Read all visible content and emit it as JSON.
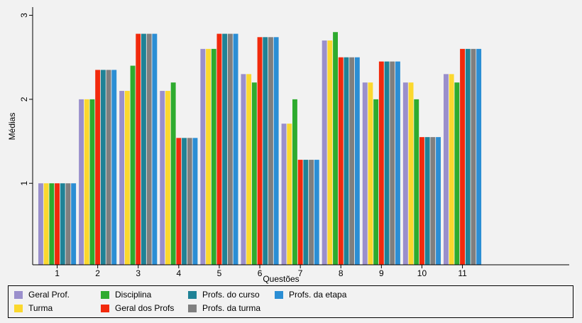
{
  "chart_data": {
    "type": "bar",
    "xlabel": "Questões",
    "ylabel": "Médias",
    "ylim": [
      0.03,
      3.03
    ],
    "yticks": [
      1,
      2,
      3
    ],
    "categories": [
      "1",
      "2",
      "3",
      "4",
      "5",
      "6",
      "7",
      "8",
      "9",
      "10",
      "11"
    ],
    "x_extent": 14,
    "grid": false,
    "legend_position": "bottom",
    "series": [
      {
        "name": "Geral Prof.",
        "color": "#9a8fcc",
        "values": [
          1.0,
          2.0,
          2.1,
          2.1,
          2.6,
          2.3,
          1.71,
          2.7,
          2.2,
          2.2,
          2.3
        ]
      },
      {
        "name": "Turma",
        "color": "#fbd82e",
        "values": [
          1.0,
          2.0,
          2.1,
          2.1,
          2.6,
          2.3,
          1.71,
          2.7,
          2.2,
          2.2,
          2.3
        ]
      },
      {
        "name": "Disciplina",
        "color": "#2eab2e",
        "values": [
          1.0,
          2.0,
          2.4,
          2.2,
          2.6,
          2.2,
          2.0,
          2.8,
          2.0,
          2.0,
          2.2
        ]
      },
      {
        "name": "Geral dos Profs",
        "color": "#f22a0c",
        "values": [
          1.0,
          2.35,
          2.78,
          1.54,
          2.78,
          2.74,
          1.28,
          2.5,
          2.45,
          1.55,
          2.6
        ]
      },
      {
        "name": "Profs. do curso",
        "color": "#1f8296",
        "values": [
          1.0,
          2.35,
          2.78,
          1.54,
          2.78,
          2.74,
          1.28,
          2.5,
          2.45,
          1.55,
          2.6
        ]
      },
      {
        "name": "Profs. da turma",
        "color": "#7f7f7f",
        "values": [
          1.0,
          2.35,
          2.78,
          1.54,
          2.78,
          2.74,
          1.28,
          2.5,
          2.45,
          1.55,
          2.6
        ]
      },
      {
        "name": "Profs. da etapa",
        "color": "#2b8ed4",
        "values": [
          1.0,
          2.35,
          2.78,
          1.54,
          2.78,
          2.74,
          1.28,
          2.5,
          2.45,
          1.55,
          2.6
        ]
      }
    ]
  }
}
